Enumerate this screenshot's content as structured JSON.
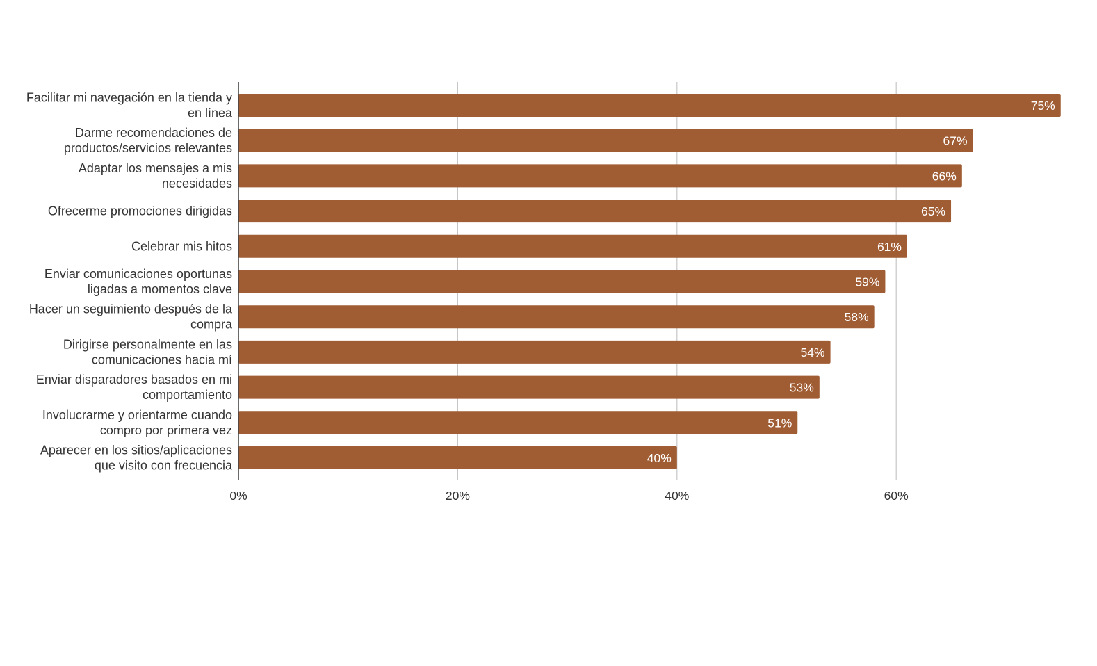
{
  "chart_data": {
    "type": "bar",
    "orientation": "horizontal",
    "title": "",
    "xlabel": "",
    "ylabel": "",
    "categories": [
      [
        "Facilitar mi navegación en la tienda y",
        "en línea"
      ],
      [
        "Darme recomendaciones de",
        "productos/servicios relevantes"
      ],
      [
        "Adaptar los mensajes a mis",
        "necesidades"
      ],
      [
        "Ofrecerme promociones dirigidas"
      ],
      [
        "Celebrar mis hitos"
      ],
      [
        "Enviar comunicaciones oportunas",
        "ligadas a momentos clave"
      ],
      [
        "Hacer un seguimiento después de la",
        "compra"
      ],
      [
        "Dirigirse personalmente en las",
        "comunicaciones hacia mí"
      ],
      [
        "Enviar disparadores basados en mi",
        "comportamiento"
      ],
      [
        "Involucrarme y orientarme cuando",
        "compro por primera vez"
      ],
      [
        "Aparecer en los sitios/aplicaciones",
        "que visito con frecuencia"
      ]
    ],
    "values": [
      75,
      67,
      66,
      65,
      61,
      59,
      58,
      54,
      53,
      51,
      40
    ],
    "value_labels": [
      "75%",
      "67%",
      "66%",
      "65%",
      "61%",
      "59%",
      "58%",
      "54%",
      "53%",
      "51%",
      "40%"
    ],
    "xlim": [
      0,
      75
    ],
    "xticks": [
      0,
      20,
      40,
      60
    ],
    "xtick_labels": [
      "0%",
      "20%",
      "40%",
      "60%"
    ],
    "grid": true,
    "legend": "none",
    "colors": {
      "bar": "#a05c33",
      "bar_label": "#ffffff",
      "grid": "#c6c6c6",
      "axis": "#444444",
      "category_text": "#333333",
      "tick_text": "#333333"
    }
  }
}
